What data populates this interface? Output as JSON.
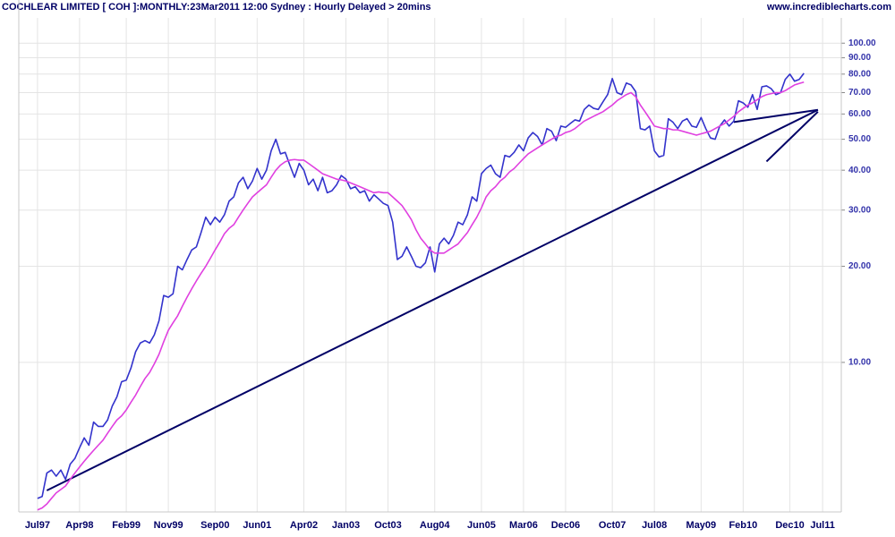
{
  "chart_data": {
    "type": "line",
    "title": "COCHLEAR LIMITED [ COH ]:MONTHLY:23Mar2011 12:00 Sydney : Hourly Delayed > 20mins",
    "source": "www.incrediblecharts.com",
    "log_scale": true,
    "grid": true,
    "xlim": [
      "1997-03",
      "2011-11"
    ],
    "ylim": [
      3.4,
      120
    ],
    "xticks": [
      {
        "value": "1997-07",
        "label": "Jul97"
      },
      {
        "value": "1998-04",
        "label": "Apr98"
      },
      {
        "value": "1999-02",
        "label": "Feb99"
      },
      {
        "value": "1999-11",
        "label": "Nov99"
      },
      {
        "value": "2000-09",
        "label": "Sep00"
      },
      {
        "value": "2001-06",
        "label": "Jun01"
      },
      {
        "value": "2002-04",
        "label": "Apr02"
      },
      {
        "value": "2003-01",
        "label": "Jan03"
      },
      {
        "value": "2003-10",
        "label": "Oct03"
      },
      {
        "value": "2004-08",
        "label": "Aug04"
      },
      {
        "value": "2005-06",
        "label": "Jun05"
      },
      {
        "value": "2006-03",
        "label": "Mar06"
      },
      {
        "value": "2006-12",
        "label": "Dec06"
      },
      {
        "value": "2007-10",
        "label": "Oct07"
      },
      {
        "value": "2008-07",
        "label": "Jul08"
      },
      {
        "value": "2009-05",
        "label": "May09"
      },
      {
        "value": "2010-02",
        "label": "Feb10"
      },
      {
        "value": "2010-12",
        "label": "Dec10"
      },
      {
        "value": "2011-07",
        "label": "Jul11"
      }
    ],
    "yticks": [
      {
        "value": 10,
        "label": "10.00"
      },
      {
        "value": 20,
        "label": "20.00"
      },
      {
        "value": 30,
        "label": "30.00"
      },
      {
        "value": 40,
        "label": "40.00"
      },
      {
        "value": 50,
        "label": "50.00"
      },
      {
        "value": 60,
        "label": "60.00"
      },
      {
        "value": 70,
        "label": "70.00"
      },
      {
        "value": 80,
        "label": "80.00"
      },
      {
        "value": 90,
        "label": "90.00"
      },
      {
        "value": 100,
        "label": "100.00"
      }
    ],
    "x": [
      "1997-07",
      "1997-08",
      "1997-09",
      "1997-10",
      "1997-11",
      "1997-12",
      "1998-01",
      "1998-02",
      "1998-03",
      "1998-04",
      "1998-05",
      "1998-06",
      "1998-07",
      "1998-08",
      "1998-09",
      "1998-10",
      "1998-11",
      "1998-12",
      "1999-01",
      "1999-02",
      "1999-03",
      "1999-04",
      "1999-05",
      "1999-06",
      "1999-07",
      "1999-08",
      "1999-09",
      "1999-10",
      "1999-11",
      "1999-12",
      "2000-01",
      "2000-02",
      "2000-03",
      "2000-04",
      "2000-05",
      "2000-06",
      "2000-07",
      "2000-08",
      "2000-09",
      "2000-10",
      "2000-11",
      "2000-12",
      "2001-01",
      "2001-02",
      "2001-03",
      "2001-04",
      "2001-05",
      "2001-06",
      "2001-07",
      "2001-08",
      "2001-09",
      "2001-10",
      "2001-11",
      "2001-12",
      "2002-01",
      "2002-02",
      "2002-03",
      "2002-04",
      "2002-05",
      "2002-06",
      "2002-07",
      "2002-08",
      "2002-09",
      "2002-10",
      "2002-11",
      "2002-12",
      "2003-01",
      "2003-02",
      "2003-03",
      "2003-04",
      "2003-05",
      "2003-06",
      "2003-07",
      "2003-08",
      "2003-09",
      "2003-10",
      "2003-11",
      "2003-12",
      "2004-01",
      "2004-02",
      "2004-03",
      "2004-04",
      "2004-05",
      "2004-06",
      "2004-07",
      "2004-08",
      "2004-09",
      "2004-10",
      "2004-11",
      "2004-12",
      "2005-01",
      "2005-02",
      "2005-03",
      "2005-04",
      "2005-05",
      "2005-06",
      "2005-07",
      "2005-08",
      "2005-09",
      "2005-10",
      "2005-11",
      "2005-12",
      "2006-01",
      "2006-02",
      "2006-03",
      "2006-04",
      "2006-05",
      "2006-06",
      "2006-07",
      "2006-08",
      "2006-09",
      "2006-10",
      "2006-11",
      "2006-12",
      "2007-01",
      "2007-02",
      "2007-03",
      "2007-04",
      "2007-05",
      "2007-06",
      "2007-07",
      "2007-08",
      "2007-09",
      "2007-10",
      "2007-11",
      "2007-12",
      "2008-01",
      "2008-02",
      "2008-03",
      "2008-04",
      "2008-05",
      "2008-06",
      "2008-07",
      "2008-08",
      "2008-09",
      "2008-10",
      "2008-11",
      "2008-12",
      "2009-01",
      "2009-02",
      "2009-03",
      "2009-04",
      "2009-05",
      "2009-06",
      "2009-07",
      "2009-08",
      "2009-09",
      "2009-10",
      "2009-11",
      "2009-12",
      "2010-01",
      "2010-02",
      "2010-03",
      "2010-04",
      "2010-05",
      "2010-06",
      "2010-07",
      "2010-08",
      "2010-09",
      "2010-10",
      "2010-11",
      "2010-12",
      "2011-01",
      "2011-02",
      "2011-03"
    ],
    "series": [
      {
        "color": "#3333cc",
        "values": [
          3.75,
          3.8,
          4.5,
          4.6,
          4.4,
          4.6,
          4.3,
          4.8,
          5.0,
          5.4,
          5.8,
          5.5,
          6.5,
          6.3,
          6.3,
          6.6,
          7.3,
          7.8,
          8.7,
          8.8,
          9.6,
          10.8,
          11.5,
          11.7,
          11.5,
          12.2,
          13.5,
          16.2,
          16.0,
          16.4,
          20.0,
          19.5,
          21.0,
          22.5,
          23.0,
          25.5,
          28.5,
          27.0,
          28.5,
          27.5,
          29.0,
          32.0,
          33.0,
          36.5,
          38.0,
          35.0,
          37.0,
          40.5,
          37.5,
          40.0,
          46.0,
          50.0,
          45.0,
          45.5,
          41.5,
          38.0,
          42.0,
          40.0,
          36.0,
          37.5,
          34.5,
          38.0,
          34.0,
          34.5,
          36.0,
          38.5,
          37.5,
          35.0,
          35.5,
          34.0,
          34.5,
          32.0,
          33.5,
          32.5,
          31.5,
          31.0,
          27.5,
          21.0,
          21.5,
          23.0,
          21.5,
          20.0,
          19.8,
          20.5,
          23.0,
          19.2,
          23.5,
          24.5,
          23.5,
          25.0,
          27.5,
          27.0,
          29.0,
          33.0,
          32.0,
          39.0,
          40.5,
          41.5,
          39.0,
          38.0,
          44.5,
          44.0,
          45.5,
          48.0,
          46.0,
          50.5,
          52.5,
          51.0,
          48.0,
          54.0,
          53.0,
          49.5,
          55.0,
          54.5,
          56.0,
          57.5,
          57.0,
          62.0,
          64.0,
          62.5,
          62.0,
          65.5,
          69.0,
          77.5,
          70.0,
          69.0,
          75.0,
          74.0,
          70.5,
          54.0,
          53.5,
          55.0,
          46.0,
          44.0,
          44.5,
          58.0,
          56.5,
          54.0,
          57.0,
          58.0,
          55.0,
          54.5,
          58.5,
          54.0,
          50.5,
          50.0,
          55.0,
          57.5,
          55.0,
          57.0,
          66.0,
          65.0,
          63.0,
          69.0,
          62.0,
          73.0,
          73.5,
          72.0,
          69.0,
          70.0,
          77.0,
          80.0,
          76.0,
          77.0,
          80.5
        ]
      },
      {
        "color": "#e040e0",
        "values": [
          3.45,
          3.5,
          3.6,
          3.75,
          3.9,
          4.0,
          4.1,
          4.3,
          4.5,
          4.7,
          4.9,
          5.1,
          5.3,
          5.5,
          5.7,
          6.0,
          6.3,
          6.6,
          6.8,
          7.1,
          7.5,
          7.9,
          8.4,
          8.9,
          9.3,
          9.9,
          10.6,
          11.6,
          12.6,
          13.3,
          14.0,
          15.0,
          16.0,
          17.0,
          18.0,
          19.0,
          20.0,
          21.2,
          22.5,
          23.8,
          25.3,
          26.3,
          27.0,
          28.5,
          30.0,
          31.5,
          33.0,
          34.0,
          35.0,
          36.0,
          38.0,
          40.0,
          41.5,
          42.5,
          43.0,
          43.2,
          43.0,
          43.0,
          42.0,
          41.0,
          40.0,
          39.0,
          38.5,
          38.0,
          37.5,
          37.3,
          37.0,
          36.5,
          36.0,
          35.5,
          35.0,
          34.5,
          34.0,
          34.2,
          34.0,
          34.0,
          33.0,
          32.0,
          31.0,
          29.5,
          28.0,
          26.0,
          24.5,
          23.5,
          22.5,
          22.0,
          22.0,
          22.0,
          22.5,
          23.0,
          23.5,
          24.5,
          25.5,
          27.0,
          28.5,
          30.5,
          33.0,
          34.5,
          35.5,
          37.0,
          38.0,
          39.5,
          40.5,
          42.0,
          43.5,
          45.0,
          46.0,
          47.0,
          48.0,
          49.0,
          50.0,
          51.0,
          51.5,
          52.5,
          53.0,
          54.0,
          55.5,
          57.0,
          58.0,
          59.0,
          60.0,
          61.0,
          62.5,
          64.0,
          66.0,
          67.5,
          69.0,
          70.0,
          68.0,
          64.0,
          61.0,
          58.0,
          55.0,
          54.5,
          54.0,
          54.0,
          53.5,
          53.5,
          53.0,
          52.5,
          52.0,
          51.5,
          52.0,
          52.5,
          53.0,
          54.0,
          55.0,
          56.0,
          57.5,
          59.0,
          61.0,
          62.5,
          64.0,
          65.0,
          66.5,
          68.0,
          69.0,
          69.5,
          70.0,
          70.0,
          71.0,
          72.5,
          74.0,
          74.8,
          75.5
        ]
      }
    ],
    "trendline_color": "#000066",
    "trendlines": [
      {
        "x": [
          "1997-09",
          "2011-06"
        ],
        "values": [
          3.97,
          61.8
        ]
      },
      {
        "x": [
          "2009-12",
          "2011-06"
        ],
        "values": [
          56.6,
          61.8
        ]
      },
      {
        "x": [
          "2010-07",
          "2011-06"
        ],
        "values": [
          42.6,
          61.0
        ]
      }
    ]
  }
}
